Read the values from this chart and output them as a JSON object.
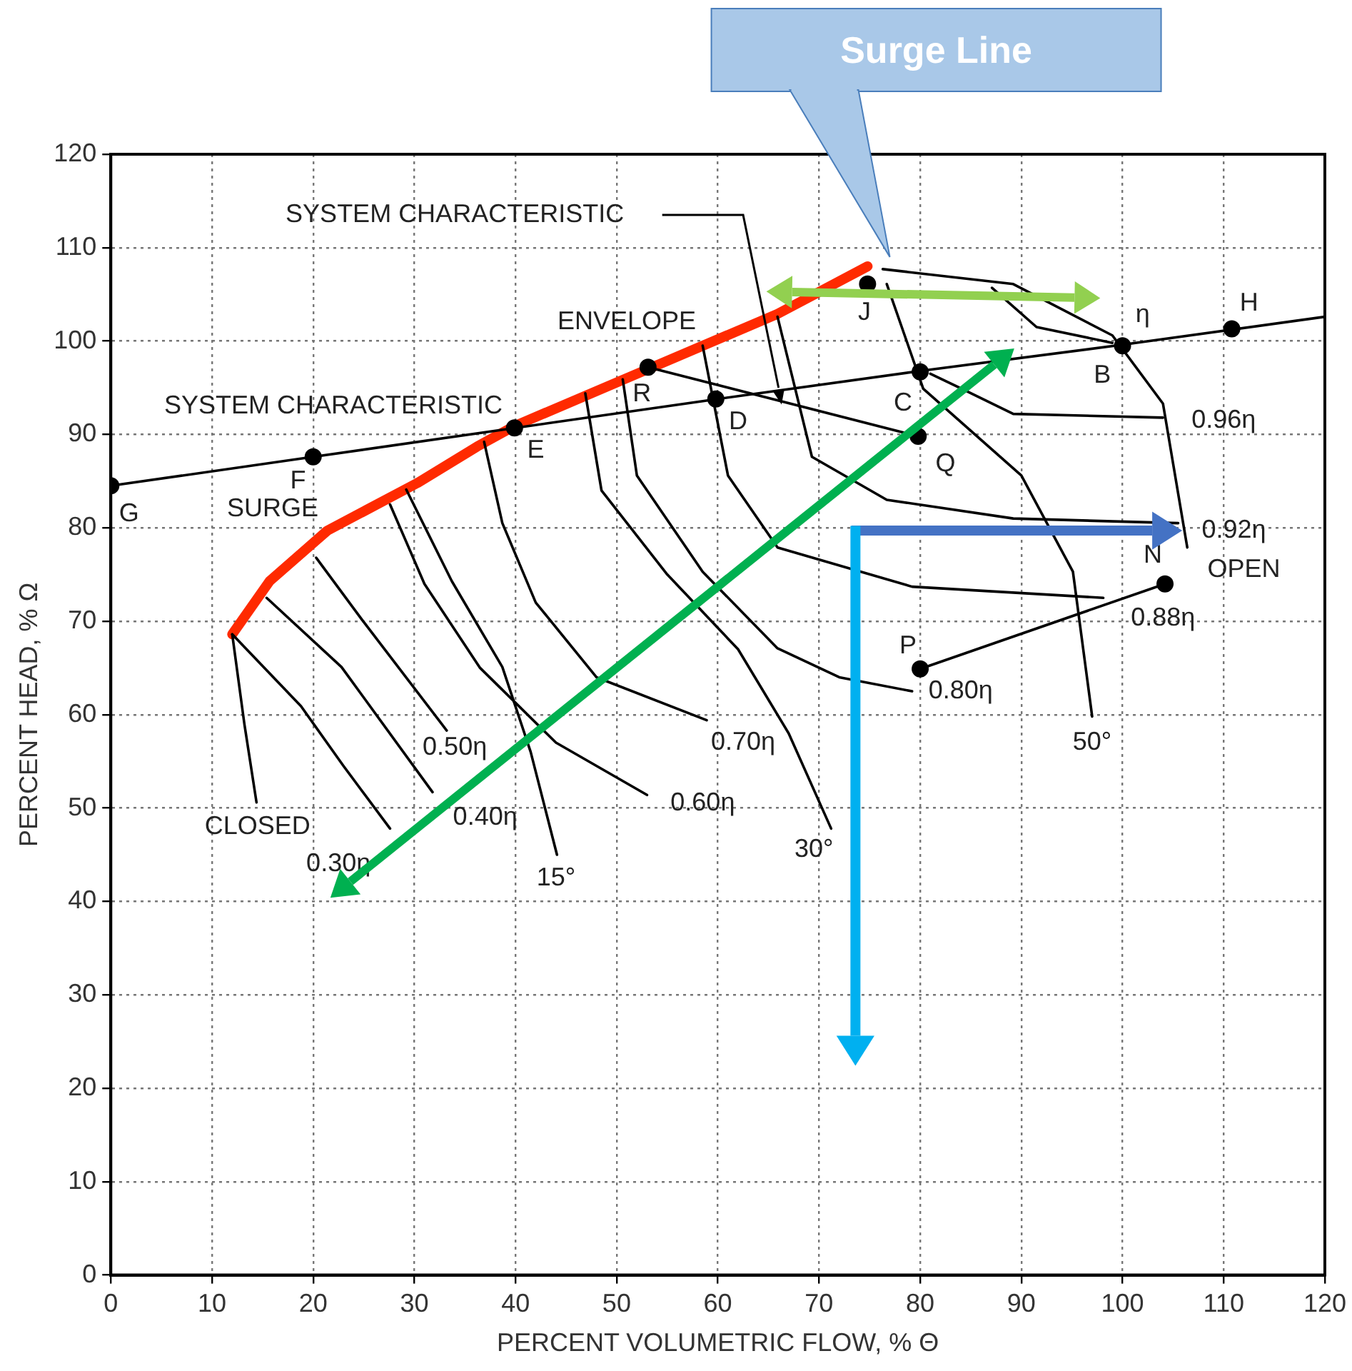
{
  "chart_data": {
    "type": "line",
    "xlabel": "PERCENT VOLUMETRIC FLOW, % Θ",
    "ylabel": "PERCENT HEAD, % Ω",
    "xlim": [
      0,
      120
    ],
    "ylim": [
      0,
      120
    ],
    "xticks": [
      0,
      10,
      20,
      30,
      40,
      50,
      60,
      70,
      80,
      90,
      100,
      110,
      120
    ],
    "yticks": [
      0,
      10,
      20,
      30,
      40,
      50,
      60,
      70,
      80,
      90,
      100,
      110,
      120
    ],
    "grid": true,
    "marker": "none",
    "line_style": "solid",
    "series": [
      {
        "type": "scatter",
        "marker": "circle",
        "color": "#000000",
        "x": [
          0,
          20,
          39.9,
          59.8,
          80,
          100,
          110.8,
          53.1,
          79.8,
          74.8,
          80,
          104.2
        ],
        "values": [
          84.5,
          87.6,
          90.7,
          93.8,
          96.7,
          99.5,
          101.3,
          97.2,
          89.8,
          106.1,
          64.9,
          74.0
        ]
      },
      {
        "color": "#000000",
        "x": [
          0,
          20,
          40,
          60,
          80,
          100,
          120
        ],
        "values": [
          84.5,
          87.6,
          90.7,
          93.8,
          96.8,
          99.6,
          102.6
        ]
      },
      {
        "color": "#000000",
        "x": [
          53.1,
          79.8
        ],
        "values": [
          97.2,
          89.8
        ]
      },
      {
        "color": "#000000",
        "x": [
          80,
          104.2
        ],
        "values": [
          64.9,
          74.0
        ]
      },
      {
        "color": "#000000",
        "x": [
          12,
          13.2,
          14.4
        ],
        "values": [
          68.6,
          59,
          50.6
        ]
      },
      {
        "color": "#000000",
        "x": [
          12,
          18.8,
          23,
          27.6
        ],
        "values": [
          68.6,
          60.9,
          54.5,
          47.8
        ]
      },
      {
        "color": "#000000",
        "x": [
          15.4,
          22.8,
          31.8
        ],
        "values": [
          72.5,
          65.1,
          51.7
        ]
      },
      {
        "color": "#000000",
        "x": [
          20.3,
          24.8,
          33.2
        ],
        "values": [
          76.8,
          70.2,
          58.3
        ]
      },
      {
        "color": "#000000",
        "x": [
          27.6,
          31,
          36.5,
          44,
          53
        ],
        "values": [
          82.5,
          74,
          65,
          57,
          51.4
        ]
      },
      {
        "color": "#000000",
        "x": [
          29.2,
          33.7,
          38.7,
          41.5,
          44.1
        ],
        "values": [
          84.1,
          74.3,
          65.1,
          56,
          45
        ]
      },
      {
        "color": "#000000",
        "x": [
          36.9,
          38.7,
          42,
          48,
          58.9
        ],
        "values": [
          89.2,
          80.5,
          72,
          64,
          59.4
        ]
      },
      {
        "color": "#000000",
        "x": [
          46.9,
          48.5,
          55,
          62,
          67,
          71.2
        ],
        "values": [
          94.4,
          84,
          75,
          67,
          58,
          47.8
        ]
      },
      {
        "color": "#000000",
        "x": [
          50.6,
          52,
          58.5,
          65.9,
          72,
          79.2
        ],
        "values": [
          95.9,
          85.6,
          75.3,
          67.1,
          64,
          62.5
        ]
      },
      {
        "color": "#000000",
        "x": [
          58.5,
          61,
          65.9,
          79.2,
          98.1
        ],
        "values": [
          99.5,
          85.6,
          77.9,
          73.7,
          72.5
        ]
      },
      {
        "color": "#000000",
        "x": [
          65.9,
          69.3,
          76.7,
          89.2,
          105.5
        ],
        "values": [
          102.6,
          87.6,
          83,
          81,
          80.5
        ]
      },
      {
        "color": "#000000",
        "x": [
          81,
          84.1,
          89.2,
          104
        ],
        "values": [
          96.5,
          94.9,
          92.2,
          91.8
        ]
      },
      {
        "color": "#000000",
        "x": [
          87.1,
          91.5,
          99
        ],
        "values": [
          105.7,
          101.5,
          99.8
        ]
      },
      {
        "color": "#000000",
        "x": [
          76.7,
          80.3,
          90,
          95.1,
          97
        ],
        "values": [
          106.1,
          94.9,
          85.6,
          75.3,
          59.8
        ]
      },
      {
        "color": "#000000",
        "x": [
          76.3,
          89.2,
          99,
          104,
          106.4
        ],
        "values": [
          107.7,
          106.1,
          100.6,
          93.3,
          77.9
        ]
      },
      {
        "color": "#ff2a00",
        "x": [
          12,
          15.7,
          21.4,
          30.3,
          36.2,
          39.9,
          53.1,
          65.9,
          74.8
        ],
        "values": [
          68.6,
          74.3,
          79.7,
          84.8,
          88.7,
          90.9,
          97.0,
          102.9,
          108.0
        ]
      }
    ],
    "annotations": [
      "Surge Line",
      "SYSTEM CHARACTERISTIC",
      "SYSTEM CHARACTERISTIC",
      "ENVELOPE",
      "SURGE",
      "G",
      "F",
      "E",
      "D",
      "C",
      "B",
      "H",
      "R",
      "Q",
      "J",
      "P",
      "N",
      "η",
      "CLOSED",
      "0.30η",
      "0.40η",
      "0.50η",
      "15°",
      "0.60η",
      "0.70η",
      "30°",
      "0.80η",
      "50°",
      "0.88η",
      "OPEN",
      "0.92η",
      "0.96η"
    ]
  }
}
